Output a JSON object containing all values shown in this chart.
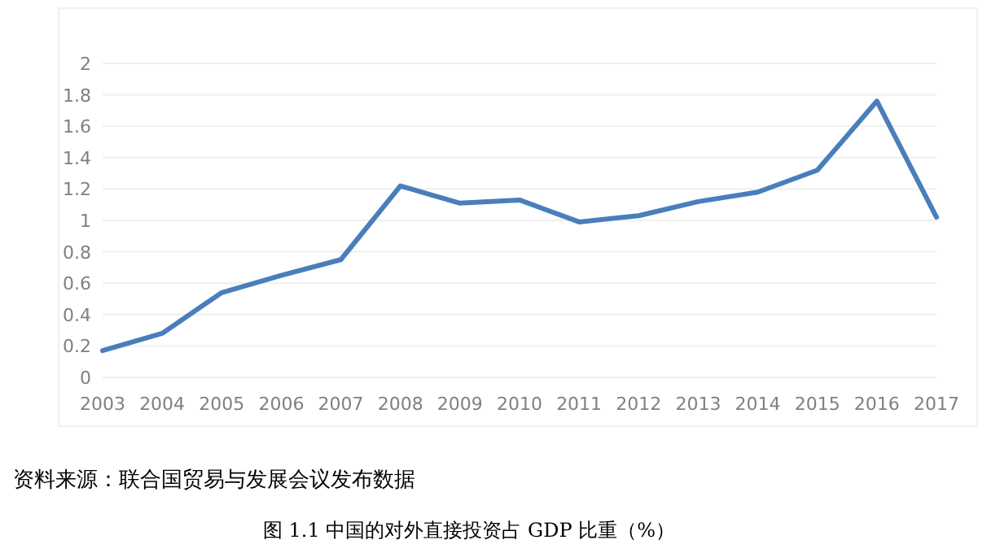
{
  "chart_data": {
    "type": "line",
    "title": "图 1.1 中国的对外直接投资占 GDP 比重（%）",
    "annotations": [
      "资料来源：联合国贸易与发展会议发布数据"
    ],
    "categories": [
      "2003",
      "2004",
      "2005",
      "2006",
      "2007",
      "2008",
      "2009",
      "2010",
      "2011",
      "2012",
      "2013",
      "2014",
      "2015",
      "2016",
      "2017"
    ],
    "series": [
      {
        "color": "#4a7ebb",
        "values": [
          0.17,
          0.28,
          0.54,
          0.65,
          0.75,
          1.22,
          1.11,
          1.13,
          0.99,
          1.03,
          1.12,
          1.18,
          1.32,
          1.76,
          1.02
        ]
      }
    ],
    "ylim": [
      0,
      2
    ],
    "yticks": [
      0,
      0.2,
      0.4,
      0.6,
      0.8,
      1,
      1.2,
      1.4,
      1.6,
      1.8,
      2
    ],
    "grid": "y",
    "marker": "none",
    "line_style": "solid"
  }
}
